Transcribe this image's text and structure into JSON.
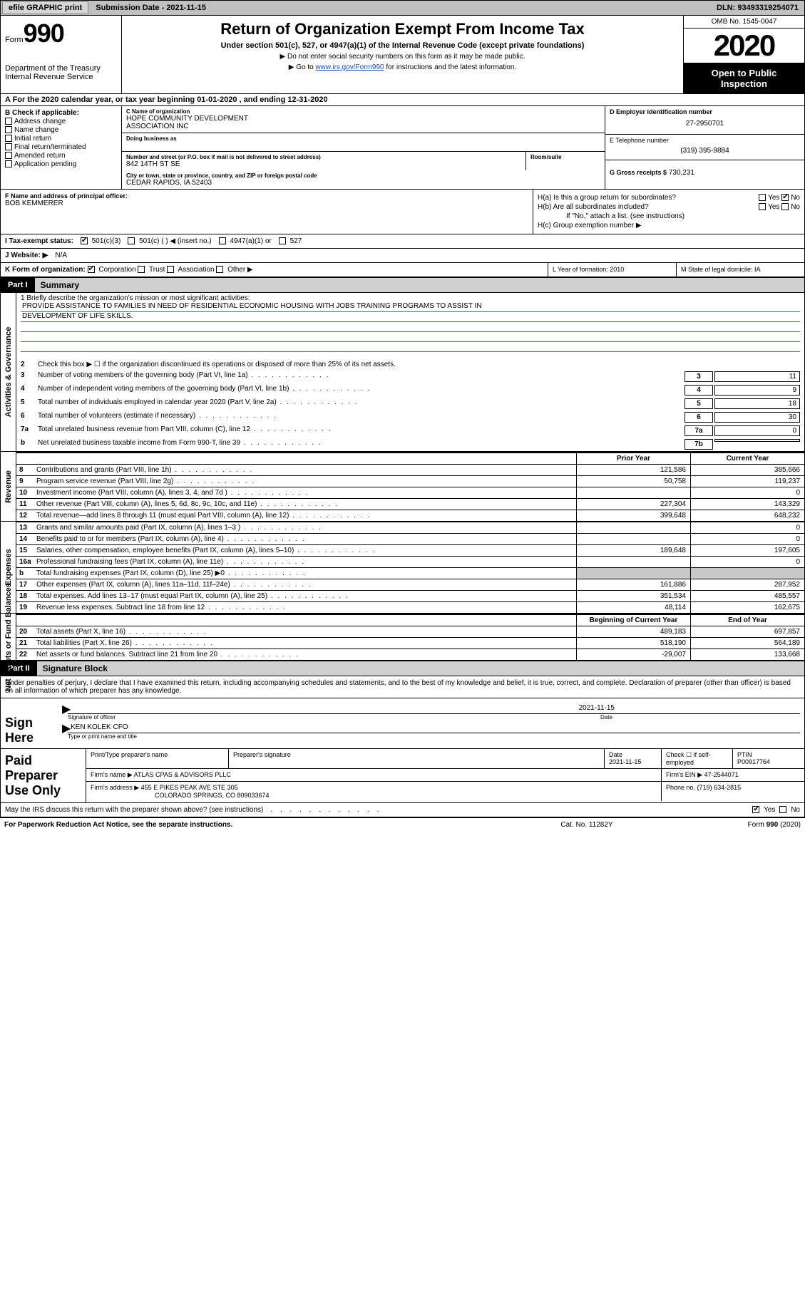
{
  "topbar": {
    "efile": "efile GRAPHIC print",
    "sub_label": "Submission Date - 2021-11-15",
    "dln": "DLN: 93493319254071"
  },
  "header": {
    "form_small": "Form",
    "form_num": "990",
    "dept1": "Department of the Treasury",
    "dept2": "Internal Revenue Service",
    "title": "Return of Organization Exempt From Income Tax",
    "sub1": "Under section 501(c), 527, or 4947(a)(1) of the Internal Revenue Code (except private foundations)",
    "sub2": "▶ Do not enter social security numbers on this form as it may be made public.",
    "sub3_pre": "▶ Go to ",
    "sub3_link": "www.irs.gov/Form990",
    "sub3_post": " for instructions and the latest information.",
    "omb": "OMB No. 1545-0047",
    "year": "2020",
    "open1": "Open to Public",
    "open2": "Inspection"
  },
  "rowA": "A For the 2020 calendar year, or tax year beginning 01-01-2020   , and ending 12-31-2020",
  "B": {
    "hdr": "B Check if applicable:",
    "opts": [
      "Address change",
      "Name change",
      "Initial return",
      "Final return/terminated",
      "Amended return",
      "Application pending"
    ]
  },
  "C": {
    "name_lbl": "C Name of organization",
    "name1": "HOPE COMMUNITY DEVELOPMENT",
    "name2": "ASSOCIATION INC",
    "dba_lbl": "Doing business as",
    "addr_lbl": "Number and street (or P.O. box if mail is not delivered to street address)",
    "room_lbl": "Room/suite",
    "addr": "842 14TH ST SE",
    "city_lbl": "City or town, state or province, country, and ZIP or foreign postal code",
    "city": "CEDAR RAPIDS, IA  52403"
  },
  "D": {
    "ein_lbl": "D Employer identification number",
    "ein": "27-2950701",
    "tel_lbl": "E Telephone number",
    "tel": "(319) 395-9884",
    "gross_lbl": "G Gross receipts $",
    "gross": "730,231"
  },
  "F": {
    "lbl": "F Name and address of principal officer:",
    "name": "BOB KEMMERER"
  },
  "H": {
    "a": "H(a)  Is this a group return for subordinates?",
    "b": "H(b)  Are all subordinates included?",
    "b_note": "If \"No,\" attach a list. (see instructions)",
    "c": "H(c)  Group exemption number ▶",
    "yes": "Yes",
    "no": "No"
  },
  "I": {
    "lbl": "I    Tax-exempt status:",
    "o1": "501(c)(3)",
    "o2": "501(c) (  ) ◀ (insert no.)",
    "o3": "4947(a)(1) or",
    "o4": "527"
  },
  "J": {
    "lbl": "J    Website: ▶",
    "val": "N/A"
  },
  "K": {
    "lbl": "K Form of organization:",
    "o1": "Corporation",
    "o2": "Trust",
    "o3": "Association",
    "o4": "Other ▶"
  },
  "L": {
    "lbl": "L Year of formation: 2010"
  },
  "M": {
    "lbl": "M State of legal domicile: IA"
  },
  "part1": {
    "tag": "Part I",
    "title": "Summary"
  },
  "summary": {
    "q1_lbl": "1   Briefly describe the organization's mission or most significant activities:",
    "q1_l1": "PROVIDE ASSISTANCE TO FAMILIES IN NEED OF RESIDENTIAL ECONOMIC HOUSING WITH JOBS TRAINING PROGRAMS TO ASSIST IN",
    "q1_l2": "DEVELOPMENT OF LIFE SKILLS.",
    "q2": "Check this box ▶ ☐  if the organization discontinued its operations or disposed of more than 25% of its net assets.",
    "rows": [
      {
        "n": "3",
        "t": "Number of voting members of the governing body (Part VI, line 1a)",
        "box": "3",
        "v": "11"
      },
      {
        "n": "4",
        "t": "Number of independent voting members of the governing body (Part VI, line 1b)",
        "box": "4",
        "v": "9"
      },
      {
        "n": "5",
        "t": "Total number of individuals employed in calendar year 2020 (Part V, line 2a)",
        "box": "5",
        "v": "18"
      },
      {
        "n": "6",
        "t": "Total number of volunteers (estimate if necessary)",
        "box": "6",
        "v": "30"
      },
      {
        "n": "7a",
        "t": "Total unrelated business revenue from Part VIII, column (C), line 12",
        "box": "7a",
        "v": "0"
      },
      {
        "n": "b",
        "t": "Net unrelated business taxable income from Form 990-T, line 39",
        "box": "7b",
        "v": ""
      }
    ]
  },
  "fin": {
    "h_prior": "Prior Year",
    "h_curr": "Current Year",
    "sections": {
      "revenue": "Revenue",
      "expenses": "Expenses",
      "net": "Net Assets or Fund Balances"
    },
    "revenue": [
      {
        "n": "8",
        "t": "Contributions and grants (Part VIII, line 1h)",
        "p": "121,586",
        "c": "385,666"
      },
      {
        "n": "9",
        "t": "Program service revenue (Part VIII, line 2g)",
        "p": "50,758",
        "c": "119,237"
      },
      {
        "n": "10",
        "t": "Investment income (Part VIII, column (A), lines 3, 4, and 7d )",
        "p": "",
        "c": "0"
      },
      {
        "n": "11",
        "t": "Other revenue (Part VIII, column (A), lines 5, 6d, 8c, 9c, 10c, and 11e)",
        "p": "227,304",
        "c": "143,329"
      },
      {
        "n": "12",
        "t": "Total revenue—add lines 8 through 11 (must equal Part VIII, column (A), line 12)",
        "p": "399,648",
        "c": "648,232"
      }
    ],
    "expenses": [
      {
        "n": "13",
        "t": "Grants and similar amounts paid (Part IX, column (A), lines 1–3 )",
        "p": "",
        "c": "0"
      },
      {
        "n": "14",
        "t": "Benefits paid to or for members (Part IX, column (A), line 4)",
        "p": "",
        "c": "0"
      },
      {
        "n": "15",
        "t": "Salaries, other compensation, employee benefits (Part IX, column (A), lines 5–10)",
        "p": "189,648",
        "c": "197,605"
      },
      {
        "n": "16a",
        "t": "Professional fundraising fees (Part IX, column (A), line 11e)",
        "p": "",
        "c": "0"
      },
      {
        "n": "b",
        "t": "Total fundraising expenses (Part IX, column (D), line 25) ▶0",
        "p": "shade",
        "c": "shade"
      },
      {
        "n": "17",
        "t": "Other expenses (Part IX, column (A), lines 11a–11d, 11f–24e)",
        "p": "161,886",
        "c": "287,952"
      },
      {
        "n": "18",
        "t": "Total expenses. Add lines 13–17 (must equal Part IX, column (A), line 25)",
        "p": "351,534",
        "c": "485,557"
      },
      {
        "n": "19",
        "t": "Revenue less expenses. Subtract line 18 from line 12",
        "p": "48,114",
        "c": "162,675"
      }
    ],
    "h_beg": "Beginning of Current Year",
    "h_end": "End of Year",
    "net": [
      {
        "n": "20",
        "t": "Total assets (Part X, line 16)",
        "p": "489,183",
        "c": "697,857"
      },
      {
        "n": "21",
        "t": "Total liabilities (Part X, line 26)",
        "p": "518,190",
        "c": "564,189"
      },
      {
        "n": "22",
        "t": "Net assets or fund balances. Subtract line 21 from line 20",
        "p": "-29,007",
        "c": "133,668"
      }
    ]
  },
  "part2": {
    "tag": "Part II",
    "title": "Signature Block"
  },
  "sig": {
    "decl": "Under penalties of perjury, I declare that I have examined this return, including accompanying schedules and statements, and to the best of my knowledge and belief, it is true, correct, and complete. Declaration of preparer (other than officer) is based on all information of which preparer has any knowledge.",
    "sign_here": "Sign Here",
    "date": "2021-11-15",
    "sig_lbl": "Signature of officer",
    "date_lbl": "Date",
    "name": "KEN KOLEK CFO",
    "name_lbl": "Type or print name and title"
  },
  "prep": {
    "title": "Paid Preparer Use Only",
    "h1": "Print/Type preparer's name",
    "h2": "Preparer's signature",
    "h3": "Date",
    "h3v": "2021-11-15",
    "h4": "Check ☐ if self-employed",
    "h5": "PTIN",
    "h5v": "P00917764",
    "firm_lbl": "Firm's name    ▶",
    "firm": "ATLAS CPAS & ADVISORS PLLC",
    "ein_lbl": "Firm's EIN ▶",
    "ein": "47-2544071",
    "addr_lbl": "Firm's address ▶",
    "addr1": "455 E PIKES PEAK AVE STE 305",
    "addr2": "COLORADO SPRINGS, CO  809033674",
    "phone_lbl": "Phone no.",
    "phone": "(719) 634-2815"
  },
  "footer": {
    "q": "May the IRS discuss this return with the preparer shown above? (see instructions)",
    "yes": "Yes",
    "no": "No",
    "pra": "For Paperwork Reduction Act Notice, see the separate instructions.",
    "cat": "Cat. No. 11282Y",
    "form": "Form 990 (2020)"
  },
  "vlabels": {
    "gov": "Activities & Governance"
  }
}
